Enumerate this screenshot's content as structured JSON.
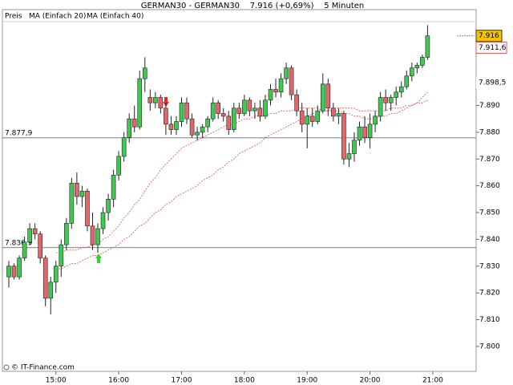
{
  "chart_data": {
    "type": "candlestick",
    "title": "GERMAN30 - GERMAN30    7.916 (+0,69%)    5 Minuten",
    "price_name": "Preis",
    "footer": "© IT-Finance.com",
    "up_color": "#40c850",
    "down_color": "#e06868",
    "categories": [
      null,
      null,
      null,
      null,
      null,
      null,
      null,
      null,
      null,
      "15:00",
      null,
      null,
      null,
      null,
      null,
      null,
      null,
      null,
      null,
      null,
      null,
      "16:00",
      null,
      null,
      null,
      null,
      null,
      null,
      null,
      null,
      null,
      null,
      null,
      "17:00",
      null,
      null,
      null,
      null,
      null,
      null,
      null,
      null,
      null,
      null,
      null,
      "18:00",
      null,
      null,
      null,
      null,
      null,
      null,
      null,
      null,
      null,
      null,
      null,
      "19:00",
      null,
      null,
      null,
      null,
      null,
      null,
      null,
      null,
      null,
      null,
      null,
      "20:00",
      null,
      null,
      null,
      null,
      null,
      null,
      null,
      null,
      null,
      null,
      null,
      "21:00"
    ],
    "open": [
      7.826,
      7.83,
      7.826,
      7.833,
      7.839,
      7.844,
      7.842,
      7.833,
      7.818,
      7.824,
      7.83,
      7.838,
      7.846,
      7.861,
      7.856,
      7.858,
      7.845,
      7.838,
      7.844,
      7.85,
      7.855,
      7.864,
      7.871,
      7.878,
      7.885,
      7.882,
      7.9,
      7.893,
      7.891,
      7.893,
      7.889,
      7.883,
      7.881,
      7.884,
      7.891,
      7.885,
      7.879,
      7.88,
      7.882,
      7.885,
      7.891,
      7.887,
      7.886,
      7.881,
      7.889,
      7.887,
      7.892,
      7.888,
      7.889,
      7.886,
      7.892,
      7.896,
      7.895,
      7.9,
      7.904,
      7.894,
      7.888,
      7.883,
      7.886,
      7.884,
      7.888,
      7.898,
      7.889,
      7.886,
      7.887,
      7.87,
      7.872,
      7.877,
      7.882,
      7.878,
      7.883,
      7.886,
      7.893,
      7.891,
      7.893,
      7.895,
      7.897,
      7.901,
      7.904,
      7.905,
      7.908,
      null
    ],
    "high": [
      7.832,
      7.831,
      7.834,
      7.841,
      7.846,
      7.846,
      7.843,
      7.834,
      7.826,
      7.832,
      7.84,
      7.848,
      7.863,
      7.865,
      7.86,
      7.859,
      7.85,
      7.846,
      7.852,
      7.857,
      7.866,
      7.873,
      7.88,
      7.887,
      7.89,
      7.903,
      7.908,
      7.896,
      7.895,
      7.894,
      7.891,
      7.886,
      7.886,
      7.893,
      7.893,
      7.887,
      7.882,
      7.883,
      7.886,
      7.893,
      7.892,
      7.889,
      7.888,
      7.891,
      7.891,
      7.894,
      7.893,
      7.891,
      7.892,
      7.894,
      7.898,
      7.9,
      7.902,
      7.906,
      7.905,
      7.896,
      7.891,
      7.889,
      7.889,
      7.89,
      7.902,
      7.9,
      7.891,
      7.889,
      7.888,
      7.876,
      7.88,
      7.884,
      7.886,
      7.887,
      7.888,
      7.895,
      7.896,
      7.894,
      7.897,
      7.899,
      7.903,
      7.906,
      7.906,
      7.909,
      7.92,
      null
    ],
    "low": [
      7.822,
      7.825,
      7.825,
      7.832,
      7.838,
      7.84,
      7.831,
      7.815,
      7.812,
      7.82,
      7.826,
      7.836,
      7.844,
      7.853,
      7.852,
      7.843,
      7.836,
      7.835,
      7.842,
      7.847,
      7.852,
      7.862,
      7.869,
      7.876,
      7.88,
      7.881,
      7.895,
      7.888,
      7.889,
      7.887,
      7.879,
      7.879,
      7.879,
      7.882,
      7.883,
      7.878,
      7.877,
      7.878,
      7.88,
      7.884,
      7.885,
      7.884,
      7.879,
      7.88,
      7.885,
      7.886,
      7.886,
      7.885,
      7.884,
      7.885,
      7.89,
      7.893,
      7.893,
      7.898,
      7.892,
      7.886,
      7.88,
      7.874,
      7.882,
      7.883,
      7.887,
      7.886,
      7.884,
      7.883,
      7.868,
      7.867,
      7.869,
      7.875,
      7.876,
      7.874,
      7.88,
      7.884,
      7.888,
      7.888,
      7.89,
      7.893,
      7.896,
      7.899,
      7.902,
      7.904,
      7.907,
      null
    ],
    "close": [
      7.83,
      7.826,
      7.833,
      7.839,
      7.844,
      7.842,
      7.833,
      7.818,
      7.824,
      7.83,
      7.838,
      7.846,
      7.861,
      7.856,
      7.858,
      7.845,
      7.838,
      7.844,
      7.85,
      7.855,
      7.864,
      7.871,
      7.878,
      7.885,
      7.882,
      7.9,
      7.904,
      7.891,
      7.893,
      7.889,
      7.883,
      7.881,
      7.884,
      7.891,
      7.885,
      7.879,
      7.88,
      7.882,
      7.885,
      7.891,
      7.887,
      7.886,
      7.881,
      7.889,
      7.887,
      7.892,
      7.888,
      7.889,
      7.886,
      7.892,
      7.896,
      7.895,
      7.9,
      7.904,
      7.894,
      7.888,
      7.883,
      7.886,
      7.884,
      7.888,
      7.898,
      7.889,
      7.886,
      7.887,
      7.87,
      7.872,
      7.877,
      7.882,
      7.878,
      7.883,
      7.886,
      7.893,
      7.891,
      7.893,
      7.895,
      7.897,
      7.901,
      7.904,
      7.905,
      7.908,
      7.916,
      null
    ],
    "series": [
      {
        "name": "MA (Einfach 20)",
        "color": "#e05050",
        "values": [
          null,
          null,
          null,
          null,
          null,
          null,
          null,
          null,
          null,
          7.835,
          7.835,
          7.836,
          7.836,
          7.836,
          7.837,
          7.837,
          7.838,
          7.838,
          7.84,
          7.841,
          7.843,
          7.845,
          7.848,
          7.85,
          7.853,
          7.855,
          7.858,
          7.861,
          7.863,
          7.866,
          7.868,
          7.87,
          7.872,
          7.874,
          7.875,
          7.876,
          7.877,
          7.878,
          7.879,
          7.88,
          7.881,
          7.882,
          7.883,
          7.883,
          7.884,
          7.885,
          7.885,
          7.886,
          7.886,
          7.886,
          7.887,
          7.887,
          7.888,
          7.888,
          7.888,
          7.889,
          7.889,
          7.889,
          7.889,
          7.889,
          7.888,
          7.888,
          7.888,
          7.888,
          7.887,
          7.887,
          7.886,
          7.886,
          7.885,
          7.885,
          7.885,
          7.886,
          7.886,
          7.887,
          7.887,
          7.888,
          7.889,
          7.89,
          7.891,
          7.893,
          7.895,
          null
        ]
      },
      {
        "name": "MA (Einfach 40)",
        "color": "#e05050",
        "values": [
          null,
          null,
          null,
          null,
          null,
          null,
          null,
          null,
          null,
          7.829,
          7.829,
          7.83,
          7.831,
          7.831,
          7.832,
          7.833,
          7.834,
          7.834,
          7.835,
          7.836,
          7.837,
          7.838,
          7.84,
          7.841,
          7.843,
          7.845,
          7.846,
          7.848,
          7.85,
          7.851,
          7.853,
          7.854,
          7.856,
          7.857,
          7.858,
          7.859,
          7.86,
          7.862,
          7.863,
          7.864,
          7.866,
          7.867,
          7.869,
          7.87,
          7.872,
          7.873,
          7.874,
          7.875,
          7.876,
          7.878,
          7.879,
          7.88,
          7.881,
          7.882,
          7.883,
          7.884,
          7.885,
          7.886,
          7.887,
          7.887,
          7.888,
          7.888,
          7.889,
          7.889,
          7.889,
          7.889,
          7.889,
          7.888,
          7.888,
          7.888,
          7.888,
          7.888,
          7.888,
          7.889,
          7.889,
          7.889,
          7.89,
          7.89,
          7.891,
          7.891,
          7.892,
          null
        ]
      }
    ],
    "ylim": [
      7.7907,
      7.9213
    ],
    "yticks": [
      {
        "value": 7.8,
        "label": "7.800"
      },
      {
        "value": 7.81,
        "label": "7.810"
      },
      {
        "value": 7.82,
        "label": "7.820"
      },
      {
        "value": 7.83,
        "label": "7.830"
      },
      {
        "value": 7.84,
        "label": "7.840"
      },
      {
        "value": 7.85,
        "label": "7.850"
      },
      {
        "value": 7.86,
        "label": "7.860"
      },
      {
        "value": 7.87,
        "label": "7.870"
      },
      {
        "value": 7.88,
        "label": "7.880"
      },
      {
        "value": 7.89,
        "label": "7.890"
      }
    ],
    "levels": [
      {
        "value": 7.8779,
        "label": "7.877,9"
      },
      {
        "value": 7.8369,
        "label": "7.836,9"
      }
    ],
    "last_price": 7.916,
    "ma_tags": [
      {
        "value": 7.9116,
        "label": "7.911,6"
      },
      {
        "value": 7.8985,
        "label": "7.898,5"
      }
    ]
  }
}
